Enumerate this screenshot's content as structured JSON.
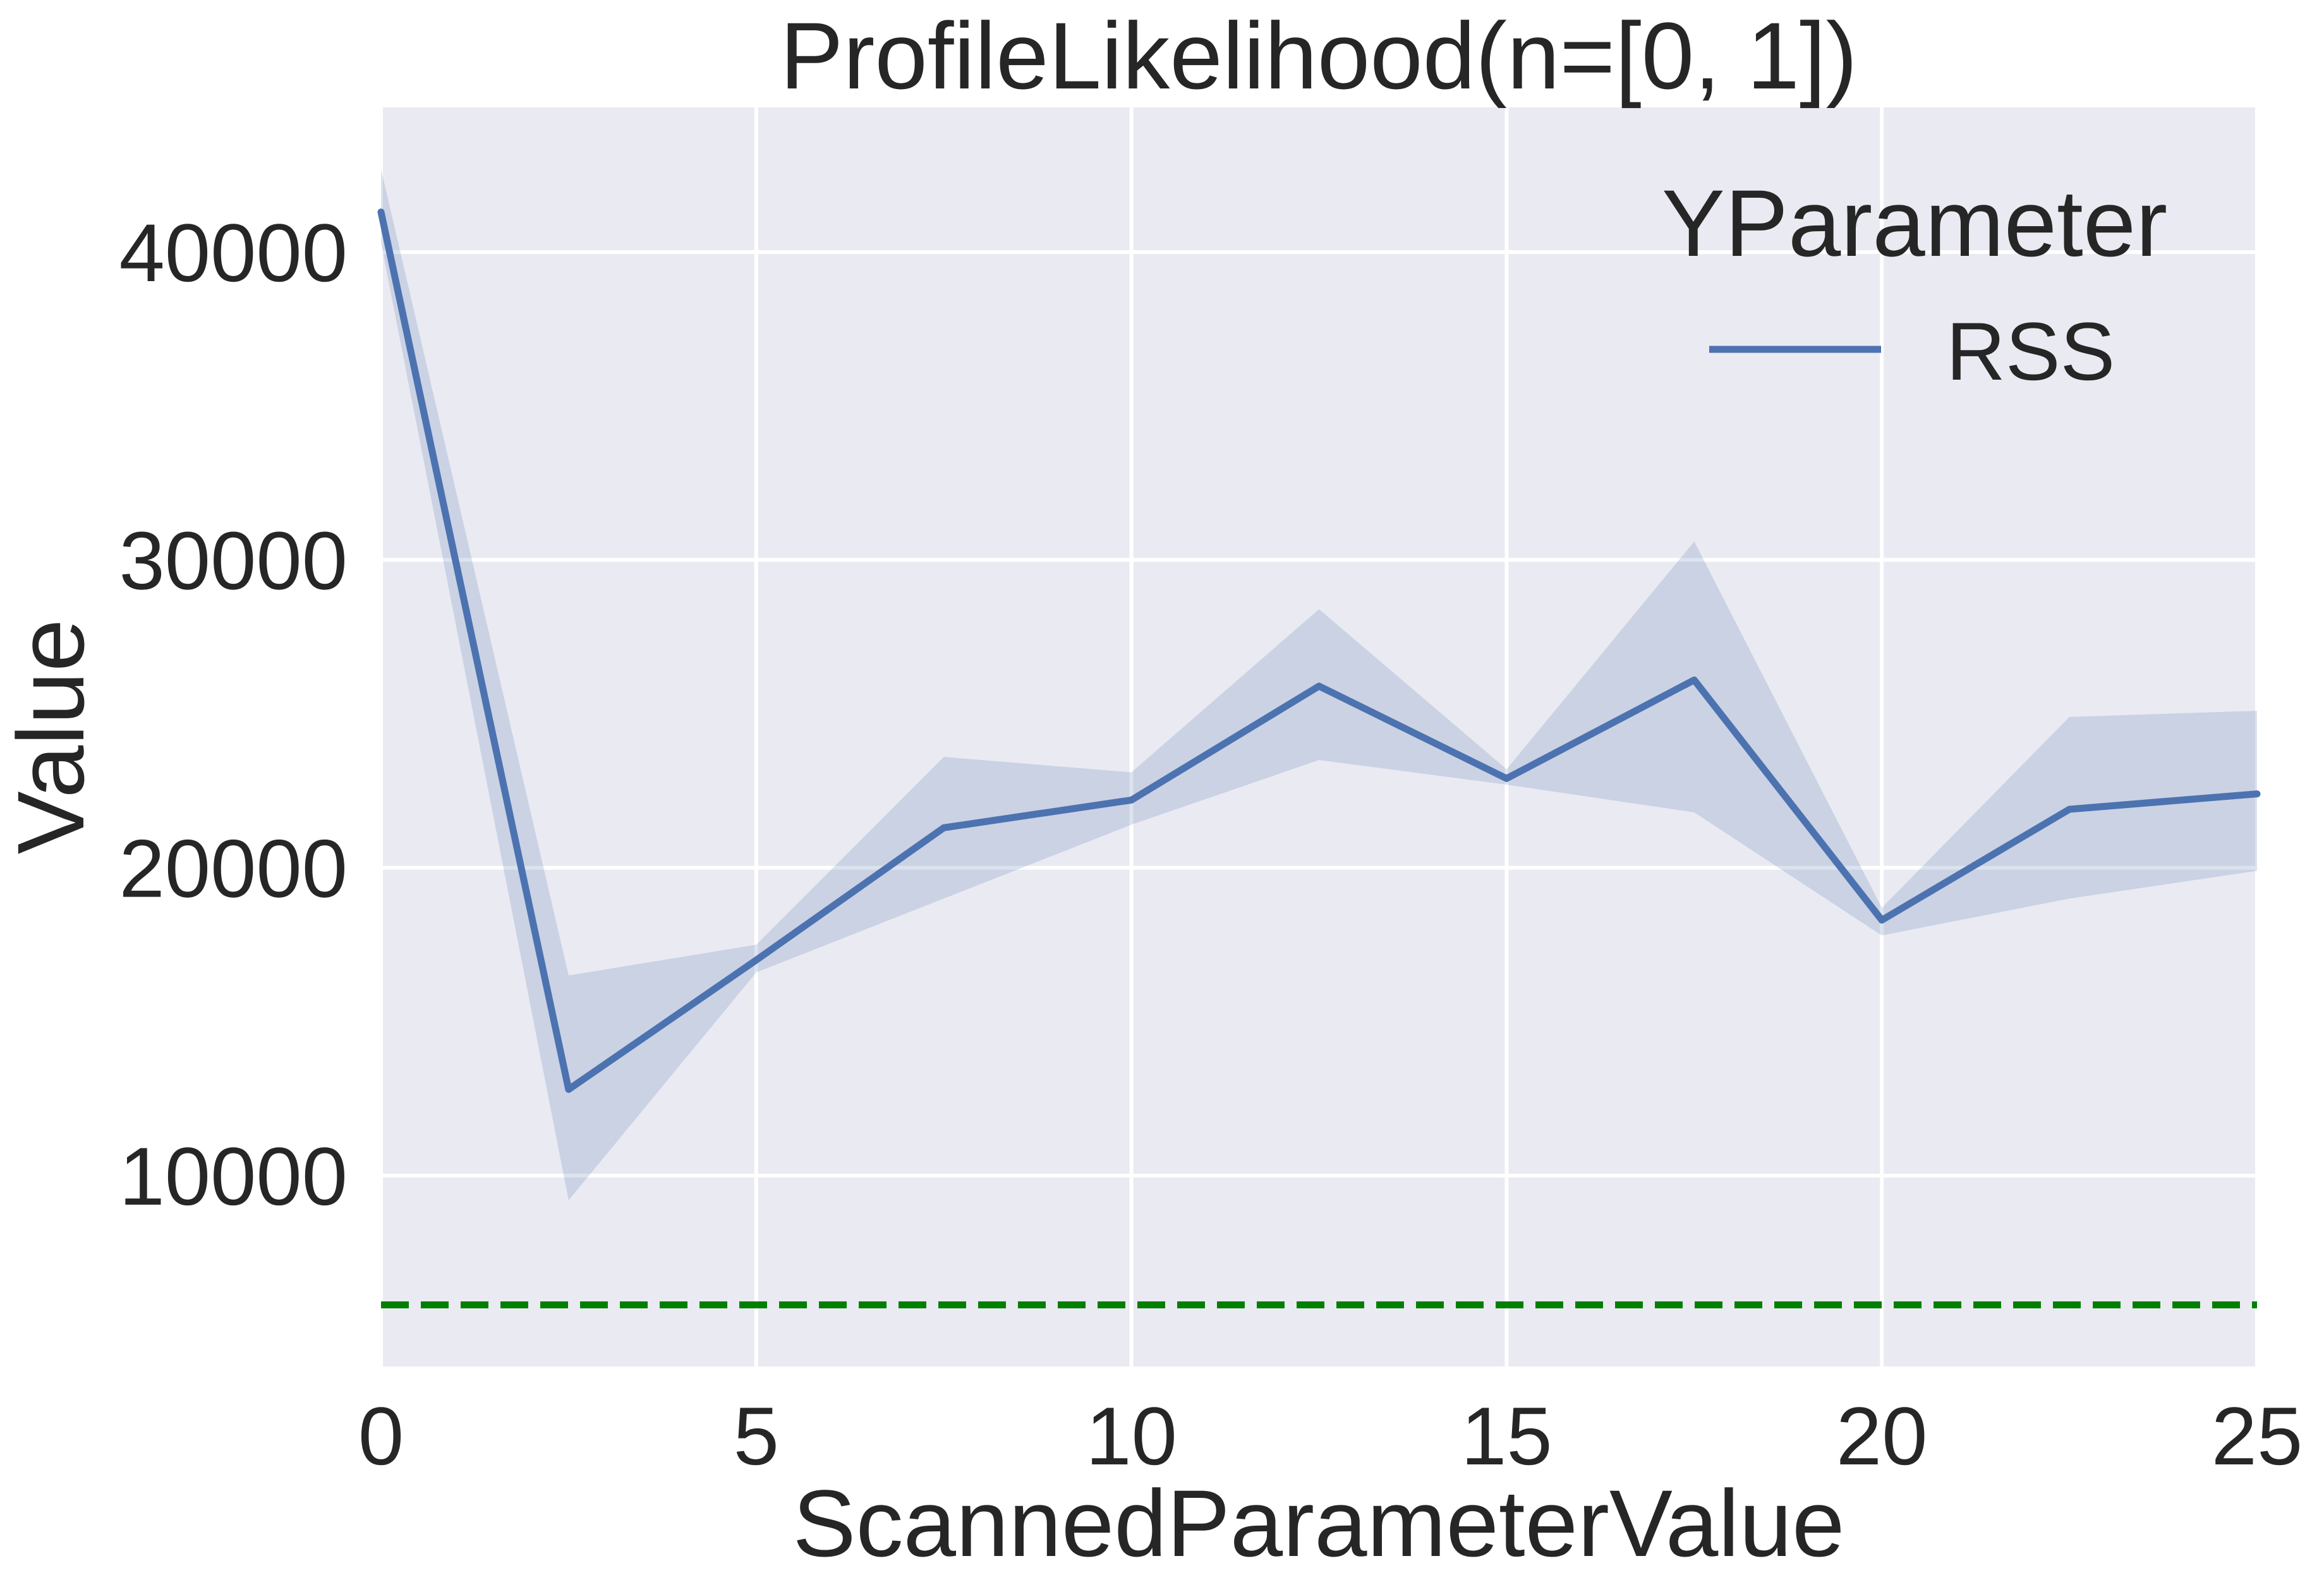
{
  "chart_data": {
    "type": "line",
    "title": "ProfileLikelihood(n=[0, 1])",
    "xlabel": "ScannedParameterValue",
    "ylabel": "Value",
    "xlim": [
      0,
      25
    ],
    "ylim": [
      3800,
      44700
    ],
    "x_ticks": [
      0,
      5,
      10,
      15,
      20,
      25
    ],
    "y_ticks": [
      10000,
      20000,
      30000,
      40000
    ],
    "x_tick_labels": [
      "0",
      "5",
      "10",
      "15",
      "20",
      "25"
    ],
    "y_tick_labels": [
      "10000",
      "20000",
      "30000",
      "40000"
    ],
    "grid": true,
    "legend": {
      "title": "YParameter",
      "placement": "top-right",
      "entries": [
        "RSS"
      ]
    },
    "series": [
      {
        "name": "RSS",
        "color": "#4c72b0",
        "x": [
          0,
          2.5,
          5,
          7.5,
          10,
          12.5,
          15,
          17.5,
          20,
          22.5,
          25
        ],
        "values": [
          41300,
          12800,
          17000,
          21300,
          22200,
          25900,
          22900,
          26100,
          18300,
          21900,
          22400
        ],
        "ci_upper": [
          42700,
          16500,
          17500,
          23600,
          23100,
          28400,
          23200,
          30600,
          18700,
          24900,
          25100
        ],
        "ci_lower": [
          40300,
          9200,
          16600,
          19000,
          21400,
          23500,
          22700,
          21800,
          17800,
          19000,
          19900
        ]
      }
    ],
    "reference_line": {
      "y": 5800,
      "color": "#008000",
      "style": "dashed"
    },
    "colors": {
      "plot_background": "#eaeaf2",
      "grid": "#ffffff",
      "band": "#4c72b0"
    }
  }
}
